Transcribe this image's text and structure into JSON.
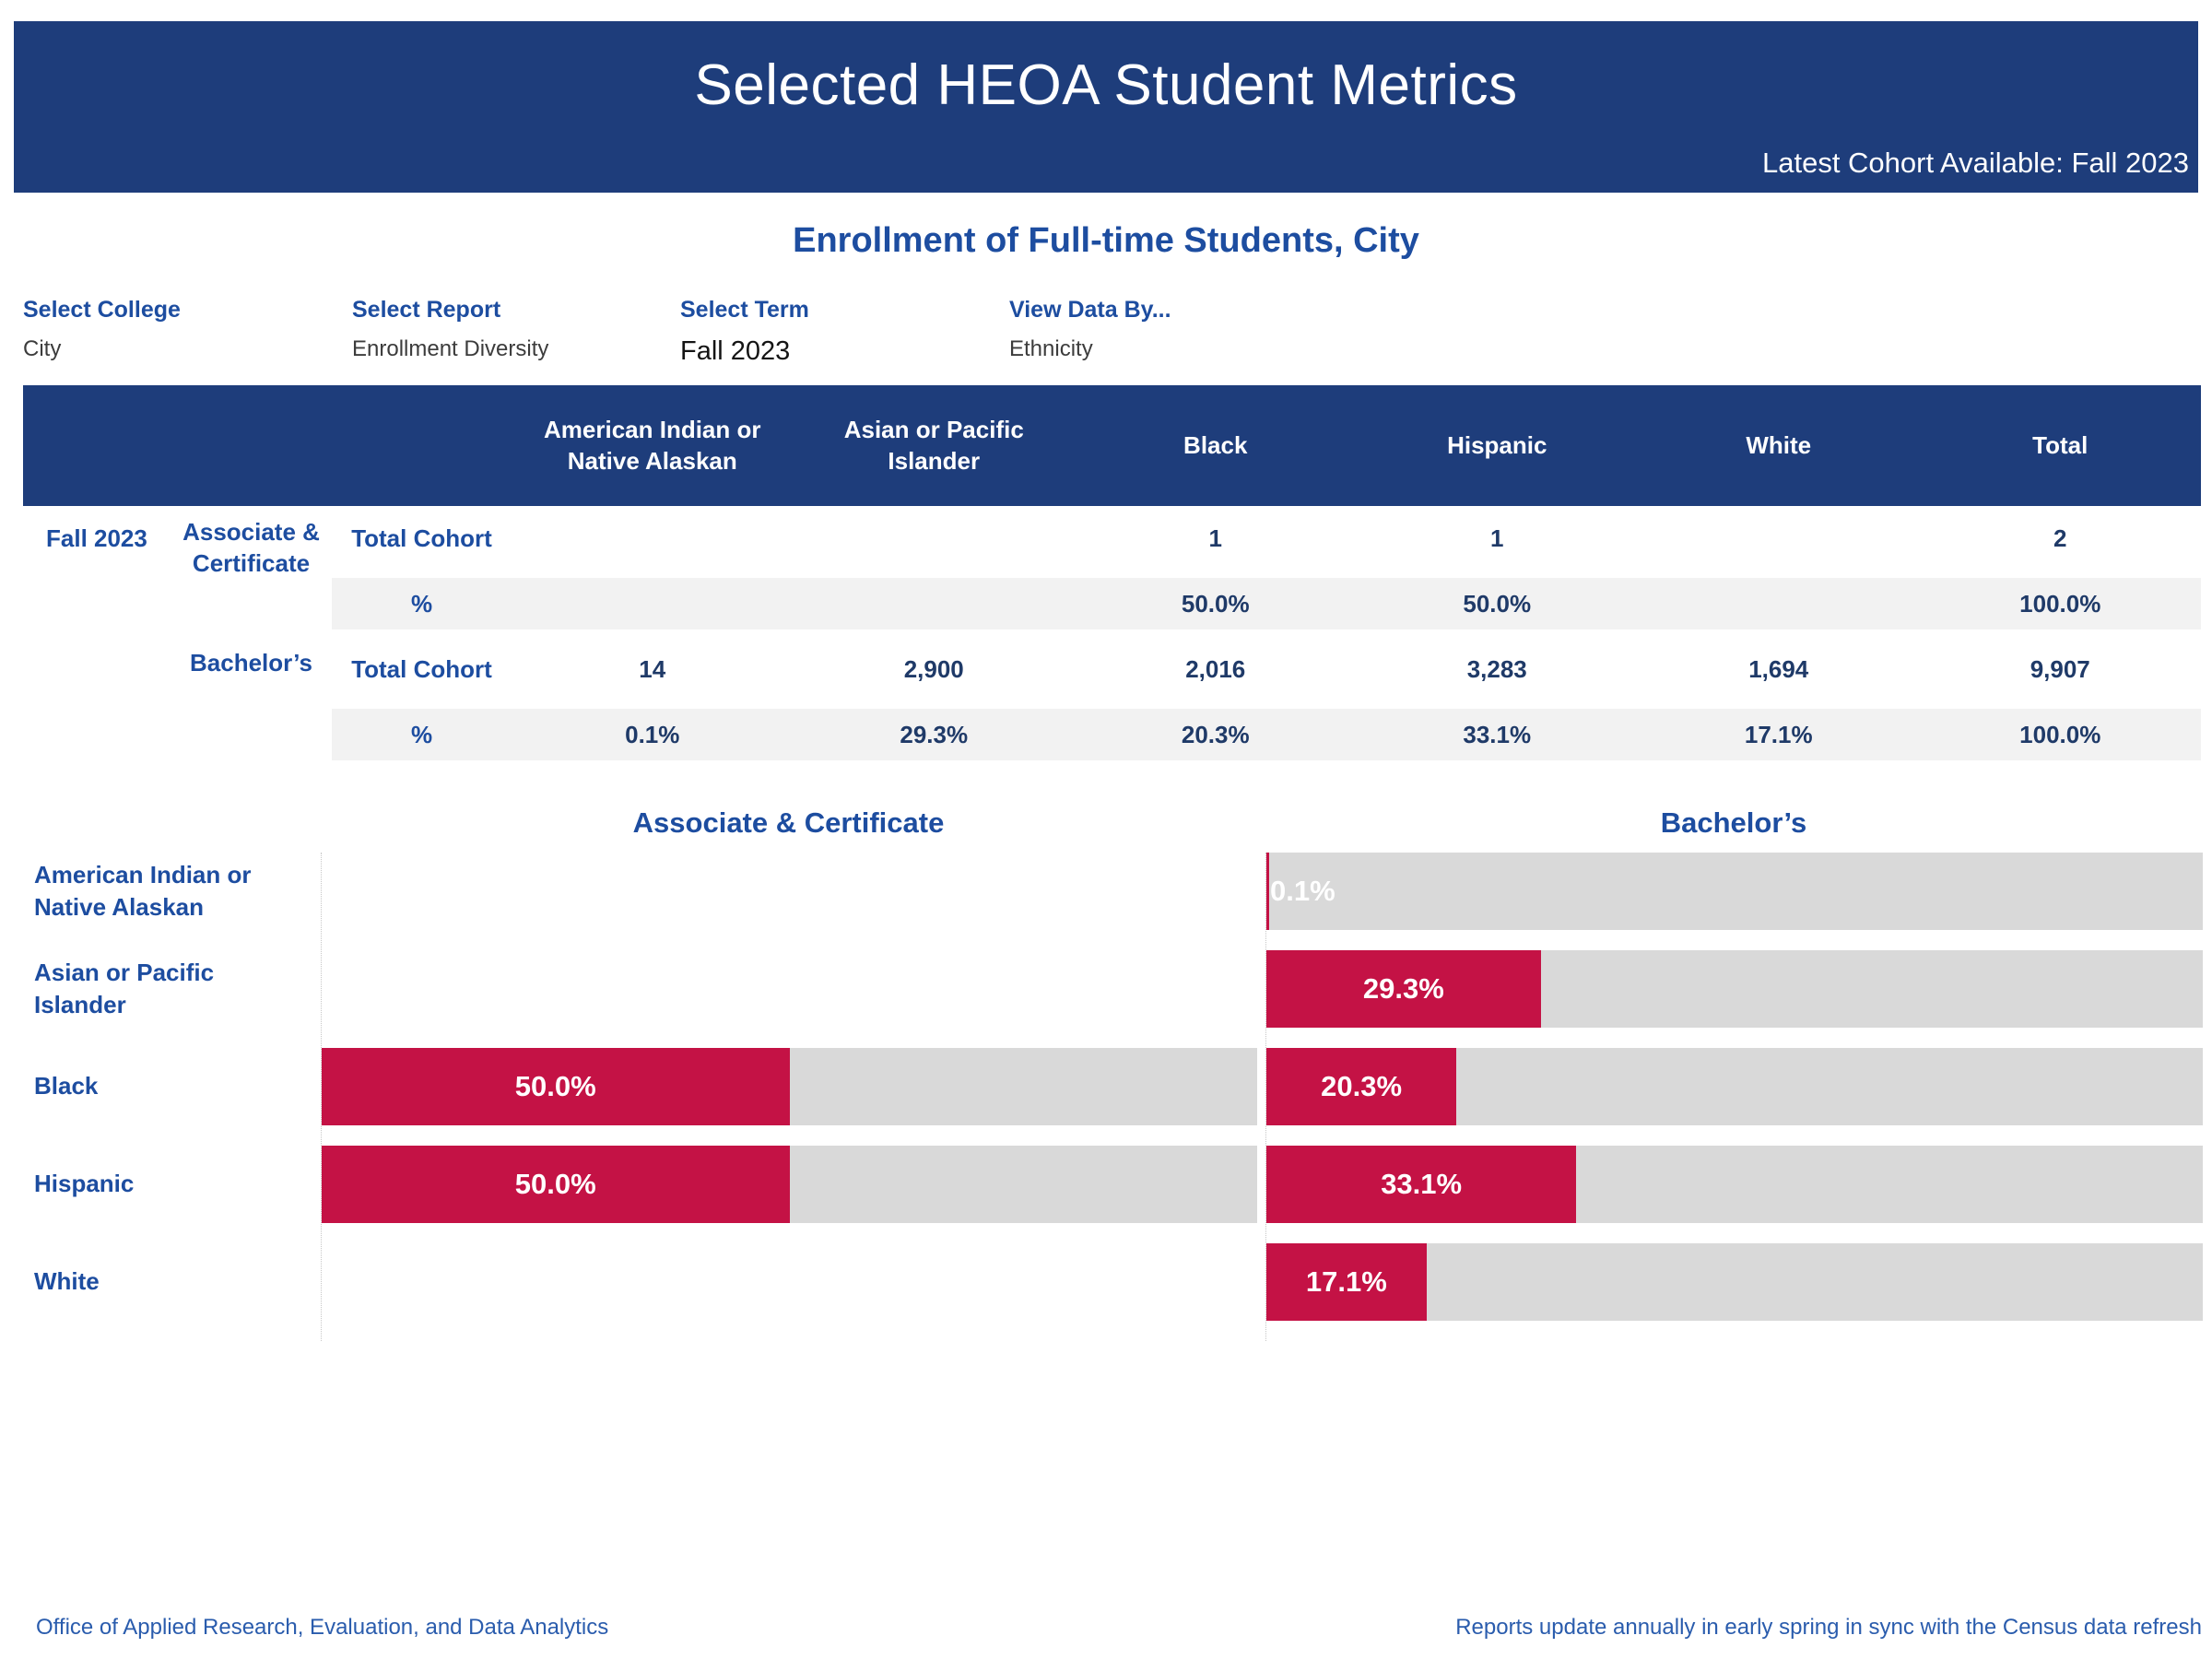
{
  "colors": {
    "navy": "#1e3d7b",
    "blue": "#1d4da0",
    "crimson": "#c41245",
    "track": "#d9d9d9",
    "band": "#f2f2f2",
    "valtext": "#1f3a68",
    "footerblue": "#2a5cad"
  },
  "banner": {
    "title": "Selected HEOA Student Metrics",
    "cohort_note": "Latest Cohort Available: Fall 2023"
  },
  "page_title": "Enrollment of Full-time Students, City",
  "filters": {
    "college": {
      "label": "Select College",
      "value": "City"
    },
    "report": {
      "label": "Select Report",
      "value": "Enrollment Diversity"
    },
    "term": {
      "label": "Select Term",
      "value": "Fall 2023"
    },
    "view_by": {
      "label": "View Data By...",
      "value": "Ethnicity"
    }
  },
  "table": {
    "term": "Fall 2023",
    "columns": [
      "American Indian or Native Alaskan",
      "Asian or Pacific Islander",
      "Black",
      "Hispanic",
      "White",
      "Total"
    ],
    "groups": [
      {
        "name": "Associate & Certificate",
        "rows": [
          {
            "label": "Total Cohort",
            "values": [
              "",
              "",
              "1",
              "1",
              "",
              "2"
            ]
          },
          {
            "label": "%",
            "values": [
              "",
              "",
              "50.0%",
              "50.0%",
              "",
              "100.0%"
            ]
          }
        ]
      },
      {
        "name": "Bachelor’s",
        "rows": [
          {
            "label": "Total Cohort",
            "values": [
              "14",
              "2,900",
              "2,016",
              "3,283",
              "1,694",
              "9,907"
            ]
          },
          {
            "label": "%",
            "values": [
              "0.1%",
              "29.3%",
              "20.3%",
              "33.1%",
              "17.1%",
              "100.0%"
            ]
          }
        ]
      }
    ]
  },
  "chart_data": [
    {
      "type": "bar",
      "orientation": "horizontal",
      "title": "Associate & Certificate",
      "categories": [
        "American Indian or Native Alaskan",
        "Asian or Pacific Islander",
        "Black",
        "Hispanic",
        "White"
      ],
      "values": [
        null,
        null,
        50.0,
        50.0,
        null
      ],
      "labels": [
        "",
        "",
        "50.0%",
        "50.0%",
        ""
      ],
      "xlim": [
        0,
        100
      ],
      "unit": "percent",
      "grid": false,
      "legend": false
    },
    {
      "type": "bar",
      "orientation": "horizontal",
      "title": "Bachelor’s",
      "categories": [
        "American Indian or Native Alaskan",
        "Asian or Pacific Islander",
        "Black",
        "Hispanic",
        "White"
      ],
      "values": [
        0.1,
        29.3,
        20.3,
        33.1,
        17.1
      ],
      "labels": [
        "0.1%",
        "29.3%",
        "20.3%",
        "33.1%",
        "17.1%"
      ],
      "xlim": [
        0,
        100
      ],
      "unit": "percent",
      "grid": false,
      "legend": false
    }
  ],
  "footer": {
    "left": "Office of Applied Research, Evaluation, and Data Analytics",
    "right": "Reports update annually in early spring in sync with the Census data refresh"
  }
}
